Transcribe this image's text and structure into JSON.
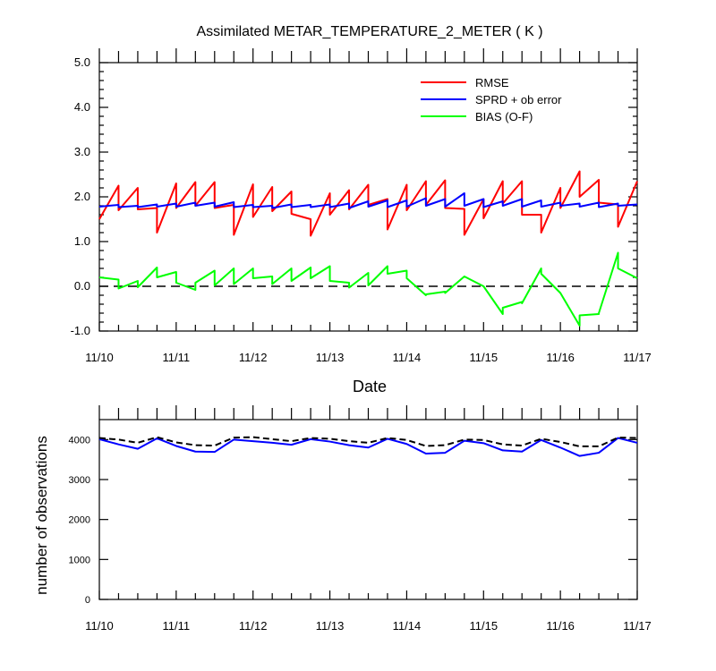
{
  "chart_data": [
    {
      "type": "line",
      "title": "Assimilated METAR_TEMPERATURE_2_METER ( K )",
      "xlabel": "Date",
      "ylabel": "",
      "ylim": [
        -1.0,
        5.0
      ],
      "y_ticks": [
        "5.0",
        "4.0",
        "3.0",
        "2.0",
        "1.0",
        "0.0",
        "-1.0"
      ],
      "x_ticks": [
        "11/10",
        "11/11",
        "11/12",
        "11/13",
        "11/14",
        "11/15",
        "11/16",
        "11/17"
      ],
      "legend": "top-right",
      "reference_line": {
        "y": 0,
        "style": "dashed"
      },
      "series": [
        {
          "name": "RMSE",
          "color": "#ff0000",
          "points": [
            [
              0.0,
              1.5
            ],
            [
              0.25,
              2.25
            ],
            [
              0.25,
              1.7
            ],
            [
              0.5,
              2.2
            ],
            [
              0.5,
              1.72
            ],
            [
              0.75,
              1.75
            ],
            [
              0.75,
              1.2
            ],
            [
              1.0,
              2.3
            ],
            [
              1.0,
              1.75
            ],
            [
              1.25,
              2.33
            ],
            [
              1.25,
              1.8
            ],
            [
              1.5,
              2.33
            ],
            [
              1.5,
              1.75
            ],
            [
              1.75,
              1.82
            ],
            [
              1.75,
              1.15
            ],
            [
              2.0,
              2.28
            ],
            [
              2.0,
              1.55
            ],
            [
              2.25,
              2.22
            ],
            [
              2.25,
              1.68
            ],
            [
              2.5,
              2.12
            ],
            [
              2.5,
              1.62
            ],
            [
              2.75,
              1.5
            ],
            [
              2.75,
              1.13
            ],
            [
              3.0,
              2.08
            ],
            [
              3.0,
              1.6
            ],
            [
              3.25,
              2.15
            ],
            [
              3.25,
              1.72
            ],
            [
              3.5,
              2.27
            ],
            [
              3.5,
              1.82
            ],
            [
              3.75,
              1.95
            ],
            [
              3.75,
              1.27
            ],
            [
              4.0,
              2.27
            ],
            [
              4.0,
              1.7
            ],
            [
              4.25,
              2.35
            ],
            [
              4.25,
              1.82
            ],
            [
              4.5,
              2.37
            ],
            [
              4.5,
              1.75
            ],
            [
              4.75,
              1.73
            ],
            [
              4.75,
              1.15
            ],
            [
              5.0,
              1.95
            ],
            [
              5.0,
              1.52
            ],
            [
              5.25,
              2.35
            ],
            [
              5.25,
              1.85
            ],
            [
              5.5,
              2.35
            ],
            [
              5.5,
              1.6
            ],
            [
              5.75,
              1.6
            ],
            [
              5.75,
              1.2
            ],
            [
              6.0,
              2.2
            ],
            [
              6.0,
              1.75
            ],
            [
              6.25,
              2.57
            ],
            [
              6.25,
              2.0
            ],
            [
              6.5,
              2.38
            ],
            [
              6.5,
              1.87
            ],
            [
              6.75,
              1.83
            ],
            [
              6.75,
              1.33
            ],
            [
              7.0,
              2.35
            ]
          ]
        },
        {
          "name": "SPRD + ob error",
          "color": "#0000ff",
          "points": [
            [
              0.0,
              1.78
            ],
            [
              0.25,
              1.82
            ],
            [
              0.25,
              1.77
            ],
            [
              0.5,
              1.8
            ],
            [
              0.5,
              1.77
            ],
            [
              0.75,
              1.83
            ],
            [
              0.75,
              1.78
            ],
            [
              1.0,
              1.85
            ],
            [
              1.0,
              1.78
            ],
            [
              1.25,
              1.87
            ],
            [
              1.25,
              1.8
            ],
            [
              1.5,
              1.87
            ],
            [
              1.5,
              1.78
            ],
            [
              1.75,
              1.88
            ],
            [
              1.75,
              1.77
            ],
            [
              2.0,
              1.82
            ],
            [
              2.0,
              1.77
            ],
            [
              2.25,
              1.8
            ],
            [
              2.25,
              1.75
            ],
            [
              2.5,
              1.83
            ],
            [
              2.5,
              1.77
            ],
            [
              2.75,
              1.82
            ],
            [
              2.75,
              1.77
            ],
            [
              3.0,
              1.83
            ],
            [
              3.0,
              1.77
            ],
            [
              3.25,
              1.85
            ],
            [
              3.25,
              1.75
            ],
            [
              3.5,
              1.9
            ],
            [
              3.5,
              1.78
            ],
            [
              3.75,
              1.92
            ],
            [
              3.75,
              1.77
            ],
            [
              4.0,
              1.92
            ],
            [
              4.0,
              1.78
            ],
            [
              4.25,
              1.97
            ],
            [
              4.25,
              1.8
            ],
            [
              4.5,
              1.95
            ],
            [
              4.5,
              1.78
            ],
            [
              4.75,
              2.08
            ],
            [
              4.75,
              1.8
            ],
            [
              5.0,
              1.95
            ],
            [
              5.0,
              1.77
            ],
            [
              5.25,
              1.9
            ],
            [
              5.25,
              1.8
            ],
            [
              5.5,
              1.95
            ],
            [
              5.5,
              1.78
            ],
            [
              5.75,
              1.92
            ],
            [
              5.75,
              1.78
            ],
            [
              6.0,
              1.87
            ],
            [
              6.0,
              1.8
            ],
            [
              6.25,
              1.85
            ],
            [
              6.25,
              1.78
            ],
            [
              6.5,
              1.87
            ],
            [
              6.5,
              1.77
            ],
            [
              6.75,
              1.85
            ],
            [
              6.75,
              1.8
            ],
            [
              7.0,
              1.83
            ]
          ]
        },
        {
          "name": "BIAS (O-F)",
          "color": "#00ff00",
          "points": [
            [
              0.0,
              0.2
            ],
            [
              0.25,
              0.15
            ],
            [
              0.25,
              -0.05
            ],
            [
              0.5,
              0.12
            ],
            [
              0.5,
              -0.02
            ],
            [
              0.75,
              0.42
            ],
            [
              0.75,
              0.2
            ],
            [
              1.0,
              0.32
            ],
            [
              1.0,
              0.08
            ],
            [
              1.25,
              -0.08
            ],
            [
              1.25,
              0.08
            ],
            [
              1.5,
              0.35
            ],
            [
              1.5,
              0.02
            ],
            [
              1.75,
              0.4
            ],
            [
              1.75,
              0.05
            ],
            [
              2.0,
              0.4
            ],
            [
              2.0,
              0.18
            ],
            [
              2.25,
              0.22
            ],
            [
              2.25,
              0.05
            ],
            [
              2.5,
              0.4
            ],
            [
              2.5,
              0.12
            ],
            [
              2.75,
              0.42
            ],
            [
              2.75,
              0.18
            ],
            [
              3.0,
              0.45
            ],
            [
              3.0,
              0.12
            ],
            [
              3.25,
              0.08
            ],
            [
              3.25,
              -0.03
            ],
            [
              3.5,
              0.3
            ],
            [
              3.5,
              0.02
            ],
            [
              3.75,
              0.45
            ],
            [
              3.75,
              0.28
            ],
            [
              4.0,
              0.35
            ],
            [
              4.0,
              0.18
            ],
            [
              4.25,
              -0.2
            ],
            [
              4.25,
              -0.18
            ],
            [
              4.5,
              -0.12
            ],
            [
              4.5,
              -0.15
            ],
            [
              4.75,
              0.22
            ],
            [
              4.75,
              0.22
            ],
            [
              5.0,
              0.0
            ],
            [
              5.0,
              0.0
            ],
            [
              5.25,
              -0.62
            ],
            [
              5.25,
              -0.48
            ],
            [
              5.5,
              -0.35
            ],
            [
              5.5,
              -0.38
            ],
            [
              5.75,
              0.4
            ],
            [
              5.75,
              0.28
            ],
            [
              6.0,
              -0.15
            ],
            [
              6.0,
              -0.15
            ],
            [
              6.25,
              -0.88
            ],
            [
              6.25,
              -0.65
            ],
            [
              6.5,
              -0.62
            ],
            [
              6.5,
              -0.6
            ],
            [
              6.75,
              0.75
            ],
            [
              6.75,
              0.4
            ],
            [
              7.0,
              0.18
            ]
          ]
        }
      ]
    },
    {
      "type": "line",
      "title": "",
      "xlabel": "",
      "ylabel": "number of observations",
      "ylim": [
        0,
        4500
      ],
      "y_ticks": [
        "4000",
        "3000",
        "2000",
        "1000",
        "0"
      ],
      "x_ticks": [
        "11/10",
        "11/11",
        "11/12",
        "11/13",
        "11/14",
        "11/15",
        "11/16",
        "11/17"
      ],
      "series": [
        {
          "name": "",
          "color": "#0000ff",
          "style": "solid",
          "points": [
            [
              0.0,
              4010
            ],
            [
              0.25,
              3880
            ],
            [
              0.5,
              3770
            ],
            [
              0.75,
              4030
            ],
            [
              1.0,
              3840
            ],
            [
              1.25,
              3700
            ],
            [
              1.5,
              3690
            ],
            [
              1.75,
              4000
            ],
            [
              2.0,
              3960
            ],
            [
              2.25,
              3920
            ],
            [
              2.5,
              3870
            ],
            [
              2.75,
              4010
            ],
            [
              3.0,
              3950
            ],
            [
              3.25,
              3860
            ],
            [
              3.5,
              3800
            ],
            [
              3.75,
              4020
            ],
            [
              4.0,
              3890
            ],
            [
              4.25,
              3650
            ],
            [
              4.5,
              3670
            ],
            [
              4.75,
              3970
            ],
            [
              5.0,
              3910
            ],
            [
              5.25,
              3730
            ],
            [
              5.5,
              3700
            ],
            [
              5.75,
              3990
            ],
            [
              6.0,
              3800
            ],
            [
              6.25,
              3590
            ],
            [
              6.5,
              3670
            ],
            [
              6.75,
              4040
            ],
            [
              7.0,
              3920
            ]
          ]
        },
        {
          "name": "",
          "color": "#000000",
          "style": "dashed",
          "points": [
            [
              0.0,
              4040
            ],
            [
              0.25,
              4000
            ],
            [
              0.5,
              3920
            ],
            [
              0.75,
              4060
            ],
            [
              1.0,
              3930
            ],
            [
              1.25,
              3860
            ],
            [
              1.5,
              3850
            ],
            [
              1.75,
              4050
            ],
            [
              2.0,
              4060
            ],
            [
              2.25,
              4010
            ],
            [
              2.5,
              3960
            ],
            [
              2.75,
              4040
            ],
            [
              3.0,
              4020
            ],
            [
              3.25,
              3960
            ],
            [
              3.5,
              3920
            ],
            [
              3.75,
              4040
            ],
            [
              4.0,
              3990
            ],
            [
              4.25,
              3840
            ],
            [
              4.5,
              3860
            ],
            [
              4.75,
              4000
            ],
            [
              5.0,
              3990
            ],
            [
              5.25,
              3880
            ],
            [
              5.5,
              3850
            ],
            [
              5.75,
              4020
            ],
            [
              6.0,
              3940
            ],
            [
              6.25,
              3830
            ],
            [
              6.5,
              3830
            ],
            [
              6.75,
              4050
            ],
            [
              7.0,
              4040
            ]
          ]
        }
      ]
    }
  ]
}
